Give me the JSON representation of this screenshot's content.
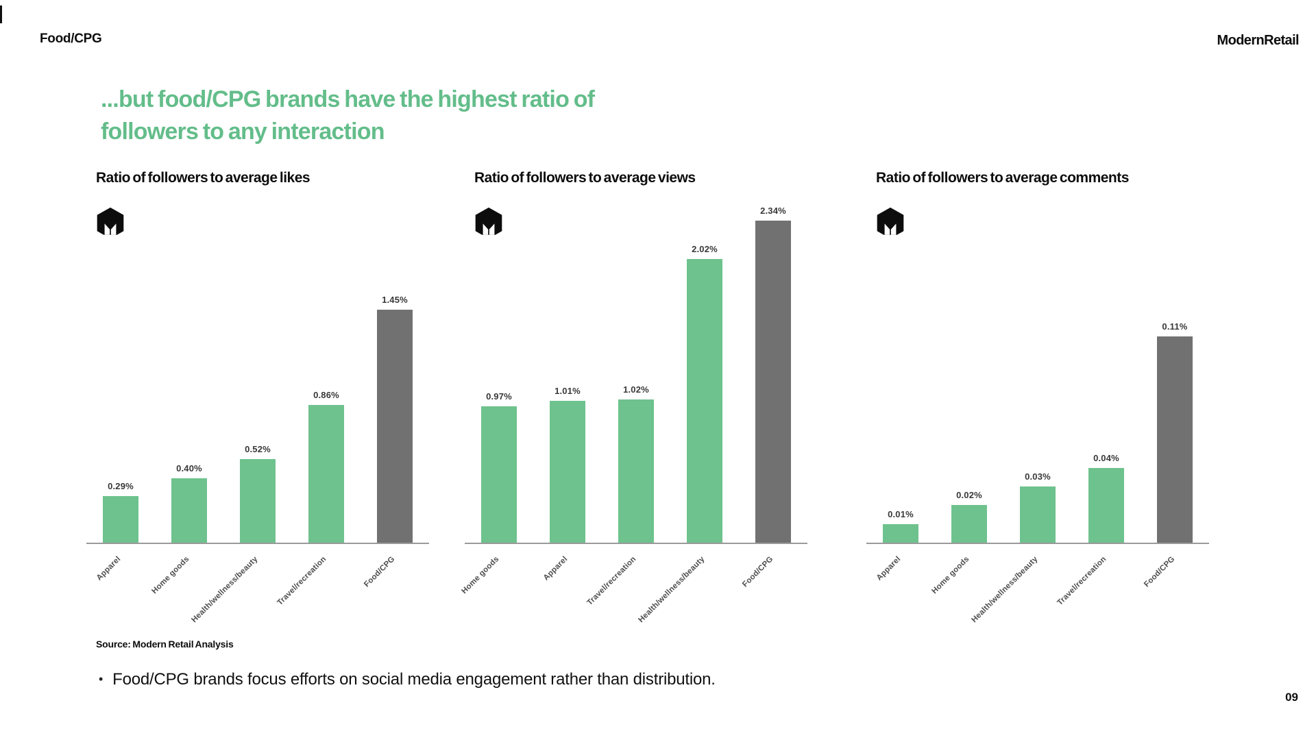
{
  "page": {
    "eyebrow": "Food/CPG",
    "brand": "ModernRetail",
    "headline_line1": "...but food/CPG brands have the highest ratio of",
    "headline_line2": "followers to any interaction",
    "source": "Source: Modern Retail Analysis",
    "bullet_marker": "•",
    "bullet_text": "Food/CPG brands focus efforts on social media engagement rather than distribution.",
    "page_number": "09",
    "colors": {
      "headline_green": "#63BD8A",
      "bar_green": "#6EC28D",
      "bar_gray": "#717171",
      "axis_gray": "#9A9A9A",
      "logo_black": "#0d0d0d"
    }
  },
  "chart_data": [
    {
      "type": "bar",
      "title": "Ratio of followers to average likes",
      "categories": [
        "Apparel",
        "Home goods",
        "Health/wellness/beauty",
        "Travel/recreation",
        "Food/CPG"
      ],
      "values": [
        0.29,
        0.4,
        0.52,
        0.86,
        1.45
      ],
      "labels": [
        "0.29%",
        "0.40%",
        "0.52%",
        "0.86%",
        "1.45%"
      ],
      "highlight_index": 4,
      "unit": "%",
      "xlabel": "",
      "ylabel": "",
      "ylim": [
        0,
        2.1
      ],
      "grid": false,
      "legend": false
    },
    {
      "type": "bar",
      "title": "Ratio of followers to average views",
      "categories": [
        "Home goods",
        "Apparel",
        "Travel/recreation",
        "Health/wellness/beauty",
        "Food/CPG"
      ],
      "values": [
        0.97,
        1.01,
        1.02,
        2.02,
        2.34
      ],
      "labels": [
        "0.97%",
        "1.01%",
        "1.02%",
        "2.02%",
        "2.34%"
      ],
      "highlight_index": 4,
      "unit": "%",
      "xlabel": "",
      "ylabel": "",
      "ylim": [
        0,
        2.4
      ],
      "grid": false,
      "legend": false
    },
    {
      "type": "bar",
      "title": "Ratio of followers to average comments",
      "categories": [
        "Apparel",
        "Home goods",
        "Health/wellness/beauty",
        "Travel/recreation",
        "Food/CPG"
      ],
      "values": [
        0.01,
        0.02,
        0.03,
        0.04,
        0.11
      ],
      "labels": [
        "0.01%",
        "0.02%",
        "0.03%",
        "0.04%",
        "0.11%"
      ],
      "highlight_index": 4,
      "unit": "%",
      "xlabel": "",
      "ylabel": "",
      "ylim": [
        0,
        0.18
      ],
      "grid": false,
      "legend": false
    }
  ]
}
